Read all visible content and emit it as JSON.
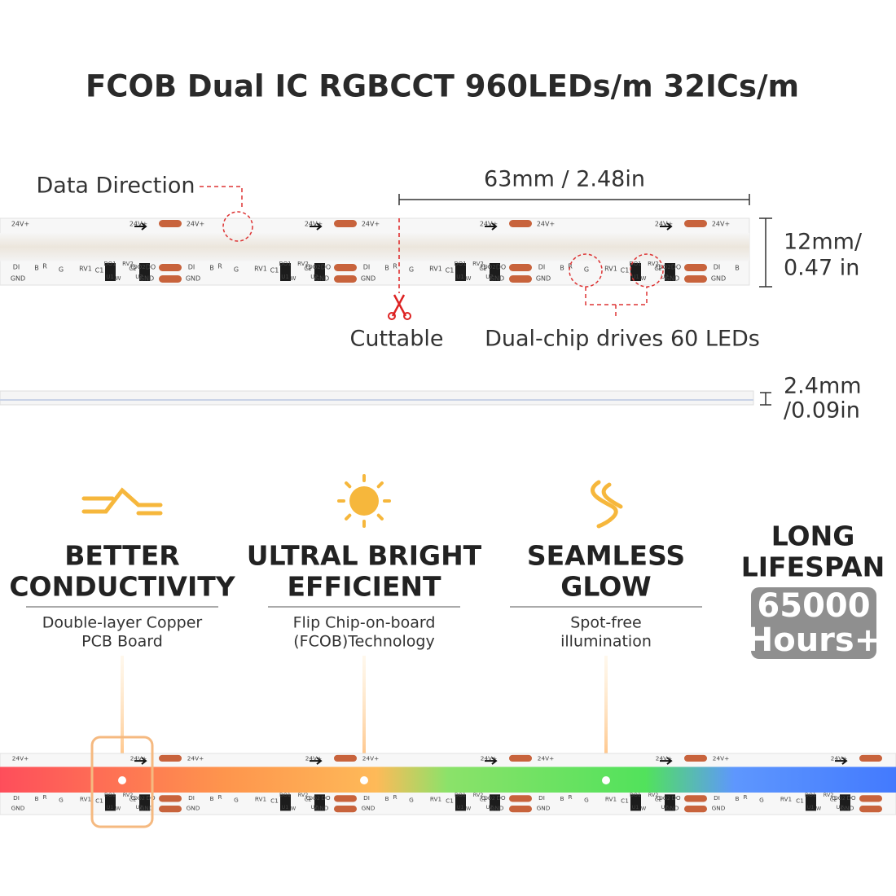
{
  "header": {
    "title": "FCOB Dual IC RGBCCT 960LEDs/m 32ICs/m"
  },
  "diagram": {
    "data_direction": "Data Direction",
    "length": "63mm / 2.48in",
    "width": [
      "12mm/",
      "0.47 in"
    ],
    "cuttable": "Cuttable",
    "dual_chip": "Dual-chip drives 60 LEDs",
    "thickness": [
      "2.4mm",
      "/0.09in"
    ],
    "pcb_labels": [
      "24V+",
      "DO",
      "DI",
      "GND",
      "RV1",
      "C1",
      "DO1",
      "U1",
      "RV2",
      "C2",
      "DO2",
      "U2",
      "B",
      "R",
      "G",
      "W",
      "C"
    ]
  },
  "features": [
    {
      "title": [
        "BETTER",
        "CONDUCTIVITY"
      ],
      "desc": [
        "Double-layer Copper",
        "PCB Board"
      ]
    },
    {
      "title": [
        "ULTRAL BRIGHT",
        "EFFICIENT"
      ],
      "desc": [
        "Flip Chip-on-board",
        "(FCOB)Technology"
      ]
    },
    {
      "title": [
        "SEAMLESS",
        "GLOW"
      ],
      "desc": [
        "Spot-free",
        "illumination"
      ]
    }
  ],
  "lifespan": {
    "title": [
      "LONG",
      "LIFESPAN"
    ],
    "badge": [
      "65000",
      "Hours+"
    ]
  }
}
